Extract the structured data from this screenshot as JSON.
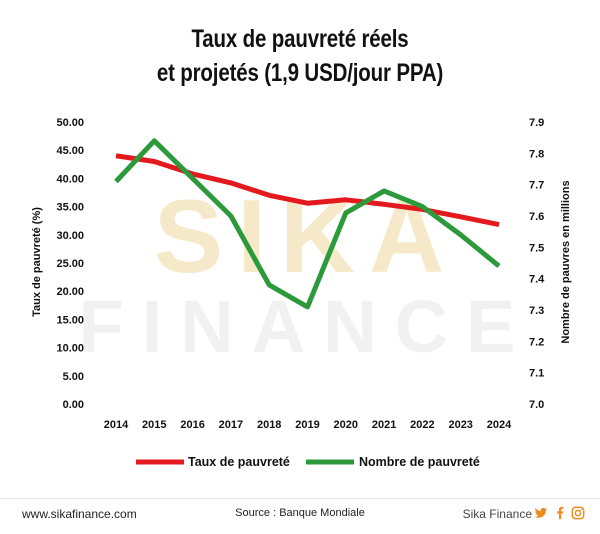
{
  "title_lines": [
    "Taux de pauvreté réels",
    "et projetés (1,9 USD/jour PPA)"
  ],
  "watermark": {
    "line1": "SIKA",
    "line2": "FINANCE"
  },
  "footer": {
    "site": "www.sikafinance.com",
    "source": "Source : Banque Mondiale",
    "brand": "Sika Finance",
    "social_icons": [
      "twitter-icon",
      "facebook-icon",
      "instagram-icon"
    ]
  },
  "colors": {
    "series1": "#e3191d",
    "series2": "#2c9a3a",
    "watermark": "#f6e9c9"
  },
  "chart_data": {
    "type": "line",
    "title": "Taux de pauvreté réels et projetés (1,9 USD/jour PPA)",
    "x": [
      "2014",
      "2015",
      "2016",
      "2017",
      "2018",
      "2019",
      "2020",
      "2021",
      "2022",
      "2023",
      "2024"
    ],
    "ylabel": "Taux de pauvreté (%)",
    "y2label": "Nombre de pauvres en millions",
    "ylim": [
      0,
      50
    ],
    "y2lim": [
      7.0,
      7.9
    ],
    "y_ticks": [
      "0.00",
      "5.00",
      "10.00",
      "15.00",
      "20.00",
      "25.00",
      "30.00",
      "35.00",
      "40.00",
      "45.00",
      "50.00"
    ],
    "y2_ticks": [
      "7.0",
      "7.1",
      "7.2",
      "7.3",
      "7.4",
      "7.5",
      "7.6",
      "7.7",
      "7.8",
      "7.9"
    ],
    "grid": false,
    "legend_position": "bottom",
    "series": [
      {
        "name": "Taux de pauvreté",
        "axis": "left",
        "values": [
          44.0,
          43.0,
          40.8,
          39.2,
          37.0,
          35.6,
          36.2,
          35.4,
          34.5,
          33.2,
          31.8
        ]
      },
      {
        "name": "Nombre de pauvreté",
        "axis": "right",
        "values": [
          7.71,
          7.84,
          7.72,
          7.6,
          7.38,
          7.31,
          7.61,
          7.68,
          7.63,
          7.54,
          7.44
        ]
      }
    ]
  }
}
